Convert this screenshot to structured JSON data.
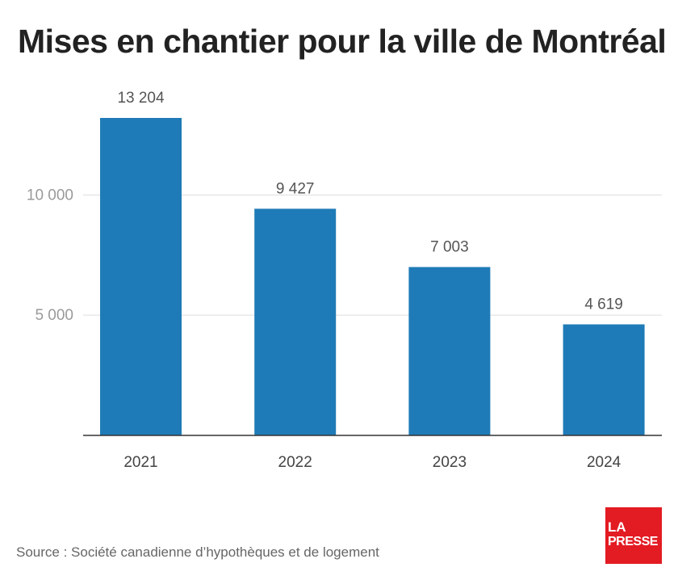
{
  "title": "Mises en chantier pour la ville de Montréal",
  "source": "Source : Société canadienne d’hypothèques et de logement",
  "logo": {
    "line1": "LA",
    "line2": "PRESSE",
    "color": "#e31b23"
  },
  "chart_data": {
    "type": "bar",
    "title": "Mises en chantier pour la ville de Montréal",
    "categories": [
      "2021",
      "2022",
      "2023",
      "2024"
    ],
    "values": [
      13204,
      9427,
      7003,
      4619
    ],
    "data_labels": [
      "13 204",
      "9 427",
      "7 003",
      "4 619"
    ],
    "yticks": [
      {
        "value": 5000,
        "label": "5 000"
      },
      {
        "value": 10000,
        "label": "10 000"
      }
    ],
    "ylim": [
      0,
      13204
    ],
    "xlabel": "",
    "ylabel": "",
    "grid": true,
    "bar_color": "#1f7bb7"
  }
}
